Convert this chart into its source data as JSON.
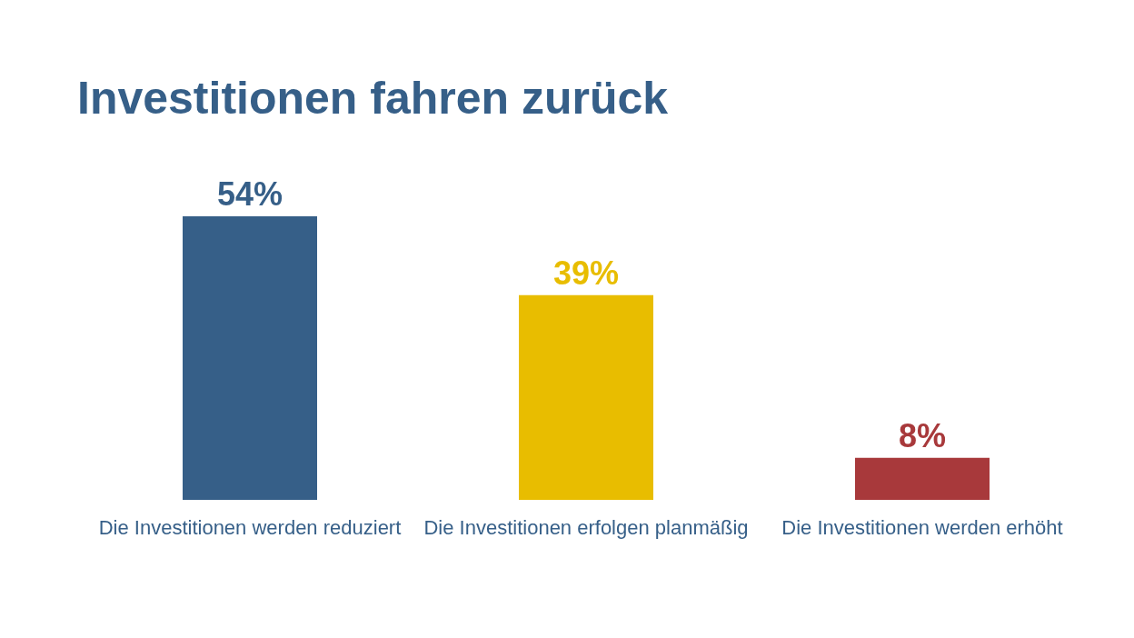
{
  "chart_data": {
    "type": "bar",
    "title": "Investitionen fahren zurück",
    "categories": [
      "Die Investitionen werden reduziert",
      "Die Investitionen erfolgen planmäßig",
      "Die Investitionen werden erhöht"
    ],
    "values": [
      54,
      39,
      8
    ],
    "colors": [
      "#365f88",
      "#e8bd00",
      "#a8393b"
    ],
    "value_labels": [
      "54%",
      "39%",
      "8%"
    ],
    "grid": false,
    "legend": false
  }
}
